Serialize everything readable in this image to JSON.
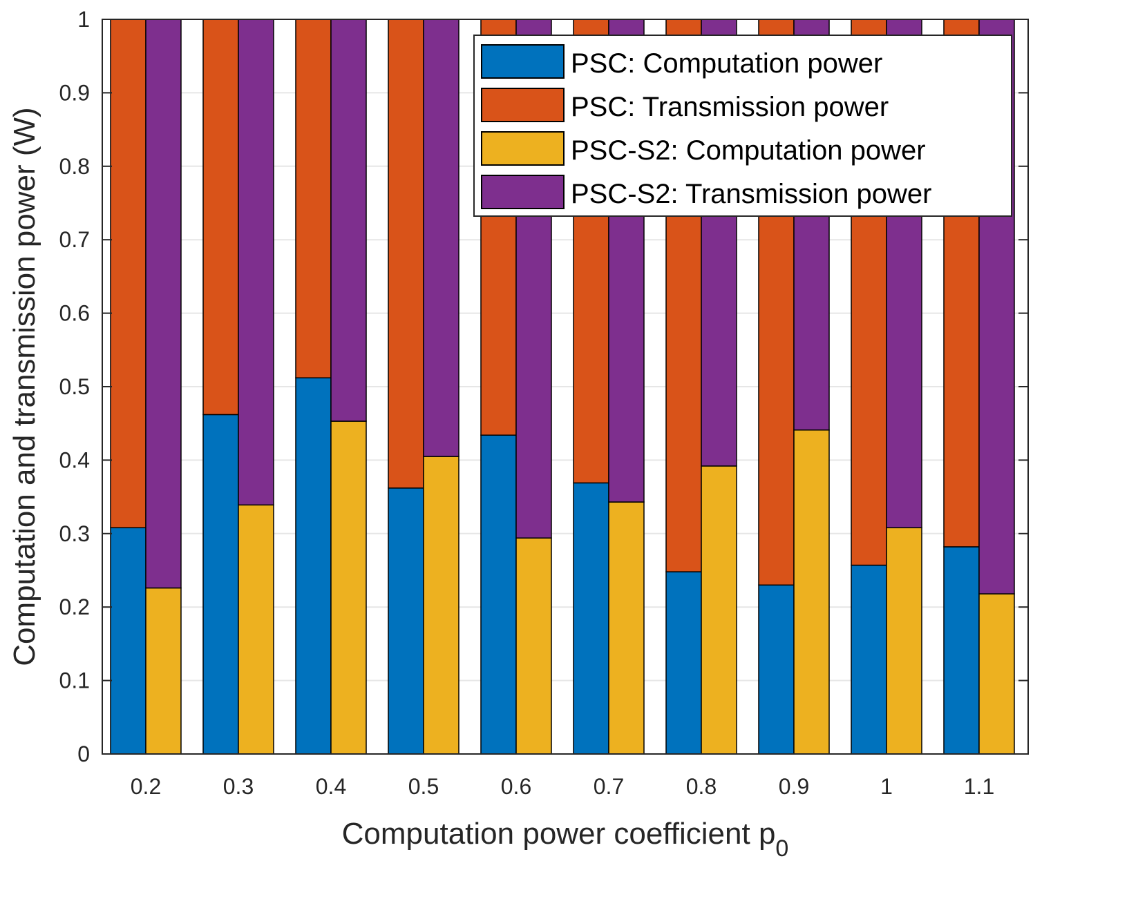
{
  "chart_data": {
    "type": "bar",
    "stacked": true,
    "grouped": true,
    "title": "",
    "xlabel": "Computation power coefficient p",
    "xlabel_subscript": "0",
    "ylabel": "Computation and transmission power (W)",
    "ylim": [
      0,
      1
    ],
    "yticks": [
      "0",
      "0.1",
      "0.2",
      "0.3",
      "0.4",
      "0.5",
      "0.6",
      "0.7",
      "0.8",
      "0.9",
      "1"
    ],
    "ytick_values": [
      0,
      0.1,
      0.2,
      0.3,
      0.4,
      0.5,
      0.6,
      0.7,
      0.8,
      0.9,
      1
    ],
    "grid": "horizontal",
    "legend_position": "top-right",
    "categories": [
      "0.2",
      "0.3",
      "0.4",
      "0.5",
      "0.6",
      "0.7",
      "0.8",
      "0.9",
      "1",
      "1.1"
    ],
    "groups": [
      {
        "name": "PSC",
        "series": [
          {
            "name": "PSC: Computation power",
            "color": "#0072BD",
            "values": [
              0.308,
              0.462,
              0.512,
              0.362,
              0.434,
              0.369,
              0.248,
              0.23,
              0.257,
              0.282
            ]
          },
          {
            "name": "PSC: Transmission power",
            "color": "#D95319",
            "values": [
              0.692,
              0.538,
              0.488,
              0.638,
              0.566,
              0.631,
              0.752,
              0.77,
              0.743,
              0.718
            ]
          }
        ]
      },
      {
        "name": "PSC-S2",
        "series": [
          {
            "name": "PSC-S2: Computation power",
            "color": "#EDB120",
            "values": [
              0.226,
              0.339,
              0.453,
              0.405,
              0.294,
              0.343,
              0.392,
              0.441,
              0.308,
              0.218
            ]
          },
          {
            "name": "PSC-S2: Transmission power",
            "color": "#7E2F8E",
            "values": [
              0.774,
              0.661,
              0.547,
              0.595,
              0.706,
              0.657,
              0.608,
              0.559,
              0.692,
              0.782
            ]
          }
        ]
      }
    ],
    "legend": [
      {
        "label": "PSC: Computation power",
        "color": "#0072BD"
      },
      {
        "label": "PSC: Transmission power",
        "color": "#D95319"
      },
      {
        "label": "PSC-S2: Computation power",
        "color": "#EDB120"
      },
      {
        "label": "PSC-S2: Transmission power",
        "color": "#7E2F8E"
      }
    ]
  }
}
